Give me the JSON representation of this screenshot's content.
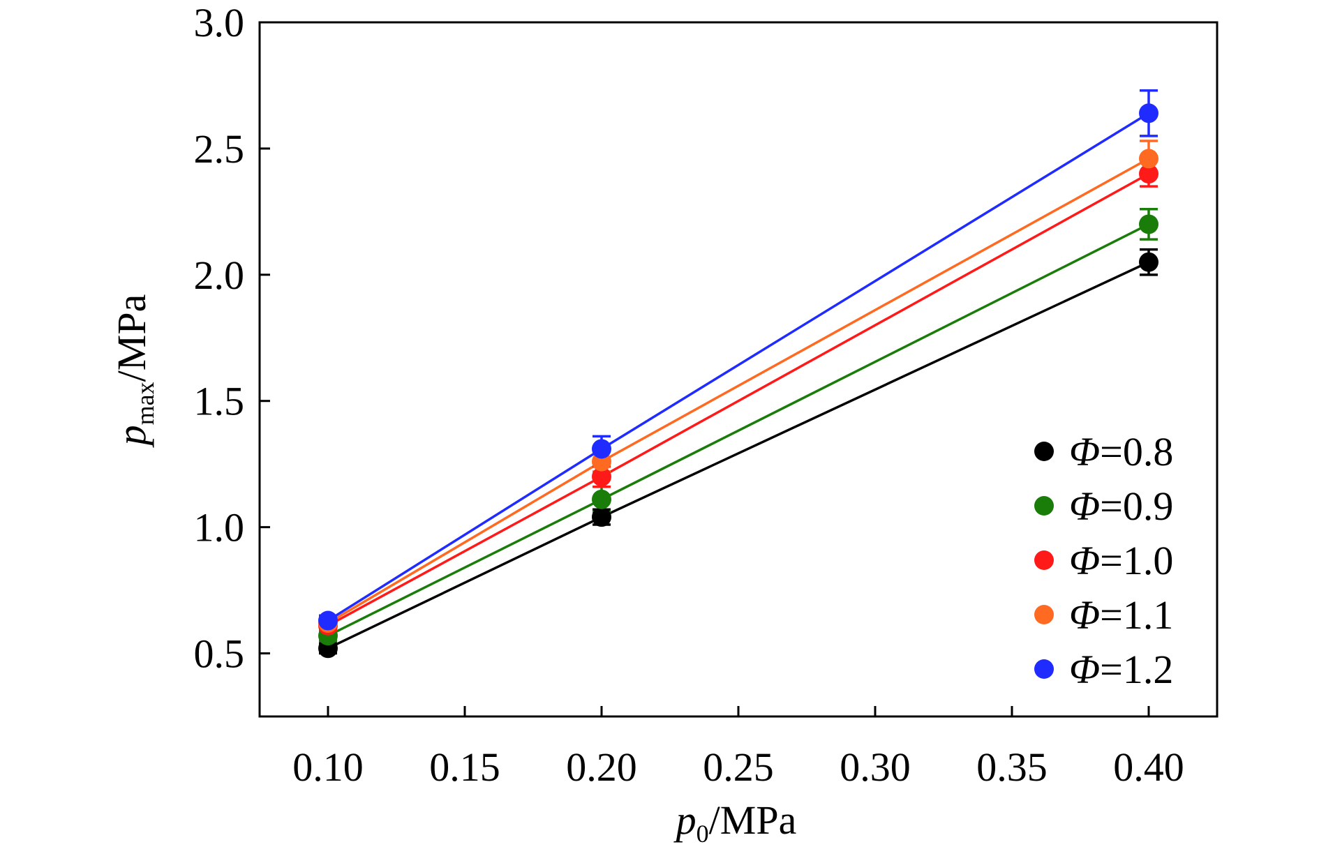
{
  "chart_data": {
    "type": "scatter",
    "title": "",
    "xlabel": {
      "symbol": "p",
      "subscript": "0",
      "unit": "/MPa"
    },
    "ylabel": {
      "symbol": "p",
      "subscript": "max",
      "unit": "/MPa"
    },
    "xlim": [
      0.075,
      0.425
    ],
    "ylim": [
      0.25,
      3.0
    ],
    "xticks": [
      0.1,
      0.15,
      0.2,
      0.25,
      0.3,
      0.35,
      0.4
    ],
    "xtick_labels": [
      "0.10",
      "0.15",
      "0.20",
      "0.25",
      "0.30",
      "0.35",
      "0.40"
    ],
    "yticks": [
      0.5,
      1.0,
      1.5,
      2.0,
      2.5,
      3.0
    ],
    "ytick_labels": [
      "0.5",
      "1.0",
      "1.5",
      "2.0",
      "2.5",
      "3.0"
    ],
    "grid": false,
    "legend_position": "bottom-right",
    "x": [
      0.1,
      0.2,
      0.4
    ],
    "series": [
      {
        "name": "Φ=0.8",
        "symbol": "Φ",
        "value": "=0.8",
        "color": "#000000",
        "values": [
          0.52,
          1.04,
          2.05
        ],
        "errors": [
          0.02,
          0.03,
          0.05
        ]
      },
      {
        "name": "Φ=0.9",
        "symbol": "Φ",
        "value": "=0.9",
        "color": "#1a7d0a",
        "values": [
          0.57,
          1.11,
          2.2
        ],
        "errors": [
          0.02,
          0.05,
          0.06
        ]
      },
      {
        "name": "Φ=1.0",
        "symbol": "Φ",
        "value": "=1.0",
        "color": "#ff1a1a",
        "values": [
          0.61,
          1.2,
          2.4
        ],
        "errors": [
          0.02,
          0.04,
          0.05
        ]
      },
      {
        "name": "Φ=1.1",
        "symbol": "Φ",
        "value": "=1.1",
        "color": "#ff6a22",
        "values": [
          0.62,
          1.26,
          2.46
        ],
        "errors": [
          0.02,
          0.04,
          0.07
        ]
      },
      {
        "name": "Φ=1.2",
        "symbol": "Φ",
        "value": "=1.2",
        "color": "#1f2bff",
        "values": [
          0.63,
          1.31,
          2.64
        ],
        "errors": [
          0.02,
          0.05,
          0.09
        ]
      }
    ]
  }
}
